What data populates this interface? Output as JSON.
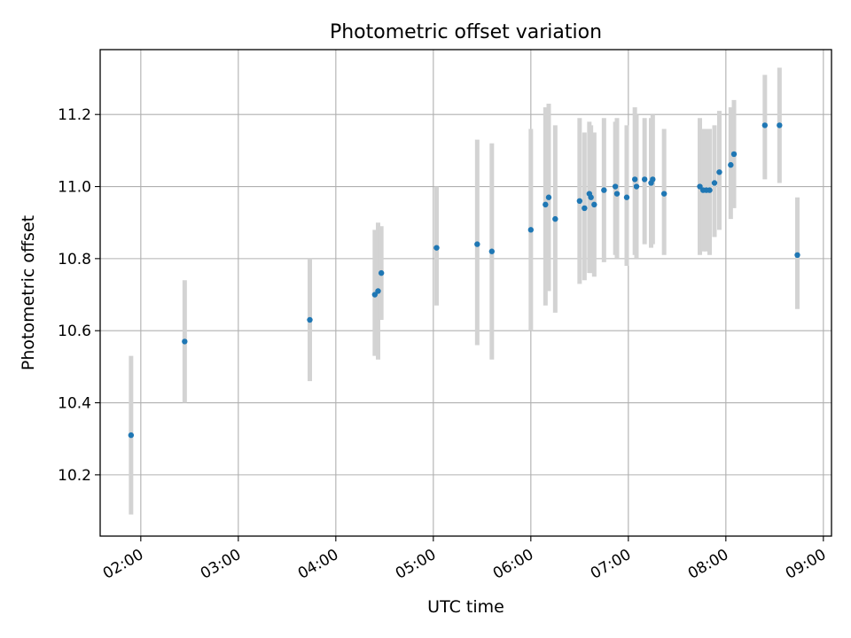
{
  "chart_data": {
    "type": "scatter",
    "title": "Photometric offset variation",
    "xlabel": "UTC time",
    "ylabel": "Photometric offset",
    "grid": true,
    "x_is_time": true,
    "xlim": [
      "01:35",
      "09:05"
    ],
    "ylim": [
      10.03,
      11.38
    ],
    "xticks": [
      "02:00",
      "03:00",
      "04:00",
      "05:00",
      "06:00",
      "07:00",
      "08:00",
      "09:00"
    ],
    "yticks": [
      "10.2",
      "10.4",
      "10.6",
      "10.8",
      "11.0",
      "11.2"
    ],
    "point_color": "#1f77b4",
    "errorbar_color": "#d3d3d3",
    "series": [
      {
        "points": [
          {
            "t": "01:54",
            "y": 10.31,
            "low": 10.09,
            "high": 10.53
          },
          {
            "t": "02:27",
            "y": 10.57,
            "low": 10.4,
            "high": 10.74
          },
          {
            "t": "03:44",
            "y": 10.63,
            "low": 10.46,
            "high": 10.8
          },
          {
            "t": "04:24",
            "y": 10.7,
            "low": 10.53,
            "high": 10.88
          },
          {
            "t": "04:26",
            "y": 10.71,
            "low": 10.52,
            "high": 10.9
          },
          {
            "t": "04:28",
            "y": 10.76,
            "low": 10.63,
            "high": 10.89
          },
          {
            "t": "05:02",
            "y": 10.83,
            "low": 10.67,
            "high": 11.0
          },
          {
            "t": "05:27",
            "y": 10.84,
            "low": 10.56,
            "high": 11.13
          },
          {
            "t": "05:36",
            "y": 10.82,
            "low": 10.52,
            "high": 11.12
          },
          {
            "t": "06:00",
            "y": 10.88,
            "low": 10.6,
            "high": 11.16
          },
          {
            "t": "06:09",
            "y": 10.95,
            "low": 10.67,
            "high": 11.22
          },
          {
            "t": "06:11",
            "y": 10.97,
            "low": 10.71,
            "high": 11.23
          },
          {
            "t": "06:15",
            "y": 10.91,
            "low": 10.65,
            "high": 11.17
          },
          {
            "t": "06:30",
            "y": 10.96,
            "low": 10.73,
            "high": 11.19
          },
          {
            "t": "06:33",
            "y": 10.94,
            "low": 10.74,
            "high": 11.15
          },
          {
            "t": "06:36",
            "y": 10.98,
            "low": 10.76,
            "high": 11.18
          },
          {
            "t": "06:37",
            "y": 10.97,
            "low": 10.76,
            "high": 11.17
          },
          {
            "t": "06:39",
            "y": 10.95,
            "low": 10.75,
            "high": 11.15
          },
          {
            "t": "06:45",
            "y": 10.99,
            "low": 10.79,
            "high": 11.19
          },
          {
            "t": "06:52",
            "y": 11.0,
            "low": 10.81,
            "high": 11.18
          },
          {
            "t": "06:53",
            "y": 10.98,
            "low": 10.8,
            "high": 11.19
          },
          {
            "t": "06:59",
            "y": 10.97,
            "low": 10.78,
            "high": 11.17
          },
          {
            "t": "07:04",
            "y": 11.02,
            "low": 10.81,
            "high": 11.22
          },
          {
            "t": "07:05",
            "y": 11.0,
            "low": 10.8,
            "high": 11.2
          },
          {
            "t": "07:10",
            "y": 11.02,
            "low": 10.84,
            "high": 11.19
          },
          {
            "t": "07:14",
            "y": 11.01,
            "low": 10.83,
            "high": 11.19
          },
          {
            "t": "07:15",
            "y": 11.02,
            "low": 10.84,
            "high": 11.2
          },
          {
            "t": "07:22",
            "y": 10.98,
            "low": 10.81,
            "high": 11.16
          },
          {
            "t": "07:44",
            "y": 11.0,
            "low": 10.81,
            "high": 11.19
          },
          {
            "t": "07:46",
            "y": 10.99,
            "low": 10.82,
            "high": 11.16
          },
          {
            "t": "07:48",
            "y": 10.99,
            "low": 10.82,
            "high": 11.16
          },
          {
            "t": "07:50",
            "y": 10.99,
            "low": 10.81,
            "high": 11.16
          },
          {
            "t": "07:53",
            "y": 11.01,
            "low": 10.86,
            "high": 11.17
          },
          {
            "t": "07:56",
            "y": 11.04,
            "low": 10.88,
            "high": 11.21
          },
          {
            "t": "08:03",
            "y": 11.06,
            "low": 10.91,
            "high": 11.22
          },
          {
            "t": "08:05",
            "y": 11.09,
            "low": 10.94,
            "high": 11.24
          },
          {
            "t": "08:24",
            "y": 11.17,
            "low": 11.02,
            "high": 11.31
          },
          {
            "t": "08:33",
            "y": 11.17,
            "low": 11.01,
            "high": 11.33
          },
          {
            "t": "08:44",
            "y": 10.81,
            "low": 10.66,
            "high": 10.97
          }
        ]
      }
    ]
  }
}
